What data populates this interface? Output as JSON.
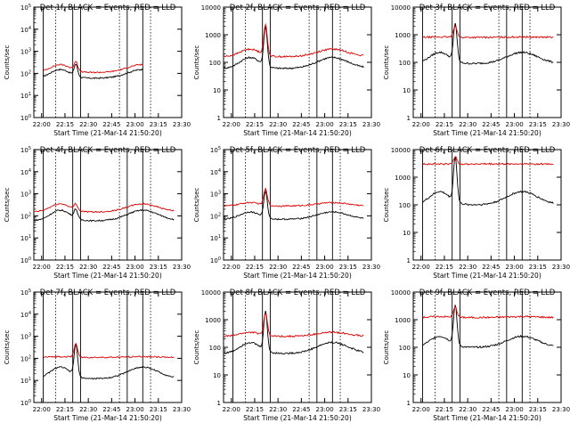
{
  "figure": {
    "xlabel": "Start Time (21-Mar-14 21:50:20)",
    "ylabel": "Counts/sec",
    "x_tick_labels": [
      "22:00",
      "22:15",
      "22:30",
      "22:45",
      "23:00",
      "23:15",
      "23:30"
    ],
    "colors": {
      "events": "#000000",
      "lld": "#dd0000"
    }
  },
  "chart_data": [
    {
      "type": "line",
      "title": "Det 1f, BLACK = Events, RED = LLD",
      "yscale": "log",
      "ytick_style": "exponent",
      "ylim": [
        1,
        100000
      ],
      "yticks": [
        1,
        10,
        100,
        1000,
        10000,
        100000
      ],
      "xlim": [
        "21:55",
        "23:30"
      ],
      "data_range": [
        "22:01",
        "23:05"
      ],
      "series": [
        {
          "name": "Events",
          "color": "#000000",
          "base": 60,
          "peak": 150,
          "flare": 200
        },
        {
          "name": "LLD",
          "color": "#dd0000",
          "base": 110,
          "peak": 250,
          "flare": 280
        }
      ]
    },
    {
      "type": "line",
      "title": "Det 2f, BLACK = Events, RED = LLD",
      "yscale": "log",
      "ytick_style": "plain",
      "ylim": [
        1,
        10000
      ],
      "yticks": [
        1,
        10,
        100,
        1000,
        10000
      ],
      "xlim": [
        "21:55",
        "23:30"
      ],
      "data_range": [
        "21:55",
        "23:25"
      ],
      "series": [
        {
          "name": "Events",
          "color": "#000000",
          "base": 60,
          "peak": 150,
          "flare": 1500
        },
        {
          "name": "LLD",
          "color": "#dd0000",
          "base": 160,
          "peak": 300,
          "flare": 1900
        }
      ]
    },
    {
      "type": "line",
      "title": "Det 3f, BLACK = Events, RED = LLD",
      "yscale": "log",
      "ytick_style": "plain",
      "ylim": [
        1,
        10000
      ],
      "yticks": [
        1,
        10,
        100,
        1000,
        10000
      ],
      "xlim": [
        "21:55",
        "23:30"
      ],
      "data_range": [
        "22:01",
        "23:25"
      ],
      "series": [
        {
          "name": "Events",
          "color": "#000000",
          "base": 90,
          "peak": 230,
          "flare": 2000
        },
        {
          "name": "LLD",
          "color": "#dd0000",
          "base": 800,
          "peak": 830,
          "flare": 2100
        }
      ]
    },
    {
      "type": "line",
      "title": "Det 4f, BLACK = Events, RED = LLD",
      "yscale": "log",
      "ytick_style": "exponent",
      "ylim": [
        1,
        100000
      ],
      "yticks": [
        1,
        10,
        100,
        1000,
        10000,
        100000
      ],
      "xlim": [
        "21:55",
        "23:30"
      ],
      "data_range": [
        "21:55",
        "23:25"
      ],
      "series": [
        {
          "name": "Events",
          "color": "#000000",
          "base": 60,
          "peak": 180,
          "flare": 150
        },
        {
          "name": "LLD",
          "color": "#dd0000",
          "base": 150,
          "peak": 350,
          "flare": 280
        }
      ]
    },
    {
      "type": "line",
      "title": "Det 5f, BLACK = Events, RED = LLD",
      "yscale": "log",
      "ytick_style": "exponent",
      "ylim": [
        1,
        100000
      ],
      "yticks": [
        1,
        10,
        100,
        1000,
        10000,
        100000
      ],
      "xlim": [
        "21:55",
        "23:30"
      ],
      "data_range": [
        "21:55",
        "23:25"
      ],
      "series": [
        {
          "name": "Events",
          "color": "#000000",
          "base": 70,
          "peak": 150,
          "flare": 1000
        },
        {
          "name": "LLD",
          "color": "#dd0000",
          "base": 280,
          "peak": 400,
          "flare": 1500
        }
      ]
    },
    {
      "type": "line",
      "title": "Det 6f, BLACK = Events, RED = LLD",
      "yscale": "log",
      "ytick_style": "plain",
      "ylim": [
        1,
        10000
      ],
      "yticks": [
        1,
        10,
        100,
        1000,
        10000
      ],
      "xlim": [
        "21:55",
        "23:30"
      ],
      "data_range": [
        "22:01",
        "23:25"
      ],
      "series": [
        {
          "name": "Events",
          "color": "#000000",
          "base": 100,
          "peak": 300,
          "flare": 4000
        },
        {
          "name": "LLD",
          "color": "#dd0000",
          "base": 3000,
          "peak": 3000,
          "flare": 5500
        }
      ]
    },
    {
      "type": "line",
      "title": "Det 7f, BLACK = Events, RED = LLD",
      "yscale": "log",
      "ytick_style": "exponent",
      "ylim": [
        1,
        100000
      ],
      "yticks": [
        1,
        10,
        100,
        1000,
        10000,
        100000
      ],
      "xlim": [
        "21:55",
        "23:30"
      ],
      "data_range": [
        "22:01",
        "23:25"
      ],
      "series": [
        {
          "name": "Events",
          "color": "#000000",
          "base": 12,
          "peak": 40,
          "flare": 300
        },
        {
          "name": "LLD",
          "color": "#dd0000",
          "base": 110,
          "peak": 120,
          "flare": 450
        }
      ]
    },
    {
      "type": "line",
      "title": "Det 8f, BLACK = Events, RED = LLD",
      "yscale": "log",
      "ytick_style": "plain",
      "ylim": [
        1,
        10000
      ],
      "yticks": [
        1,
        10,
        100,
        1000,
        10000
      ],
      "xlim": [
        "21:55",
        "23:30"
      ],
      "data_range": [
        "21:55",
        "23:25"
      ],
      "series": [
        {
          "name": "Events",
          "color": "#000000",
          "base": 60,
          "peak": 150,
          "flare": 1500
        },
        {
          "name": "LLD",
          "color": "#dd0000",
          "base": 250,
          "peak": 350,
          "flare": 1600
        }
      ]
    },
    {
      "type": "line",
      "title": "Det 9f, BLACK = Events, RED = LLD",
      "yscale": "log",
      "ytick_style": "plain",
      "ylim": [
        1,
        10000
      ],
      "yticks": [
        1,
        10,
        100,
        1000,
        10000
      ],
      "xlim": [
        "21:55",
        "23:30"
      ],
      "data_range": [
        "22:01",
        "23:25"
      ],
      "series": [
        {
          "name": "Events",
          "color": "#000000",
          "base": 100,
          "peak": 250,
          "flare": 2500
        },
        {
          "name": "LLD",
          "color": "#dd0000",
          "base": 1200,
          "peak": 1300,
          "flare": 2800
        }
      ]
    }
  ]
}
